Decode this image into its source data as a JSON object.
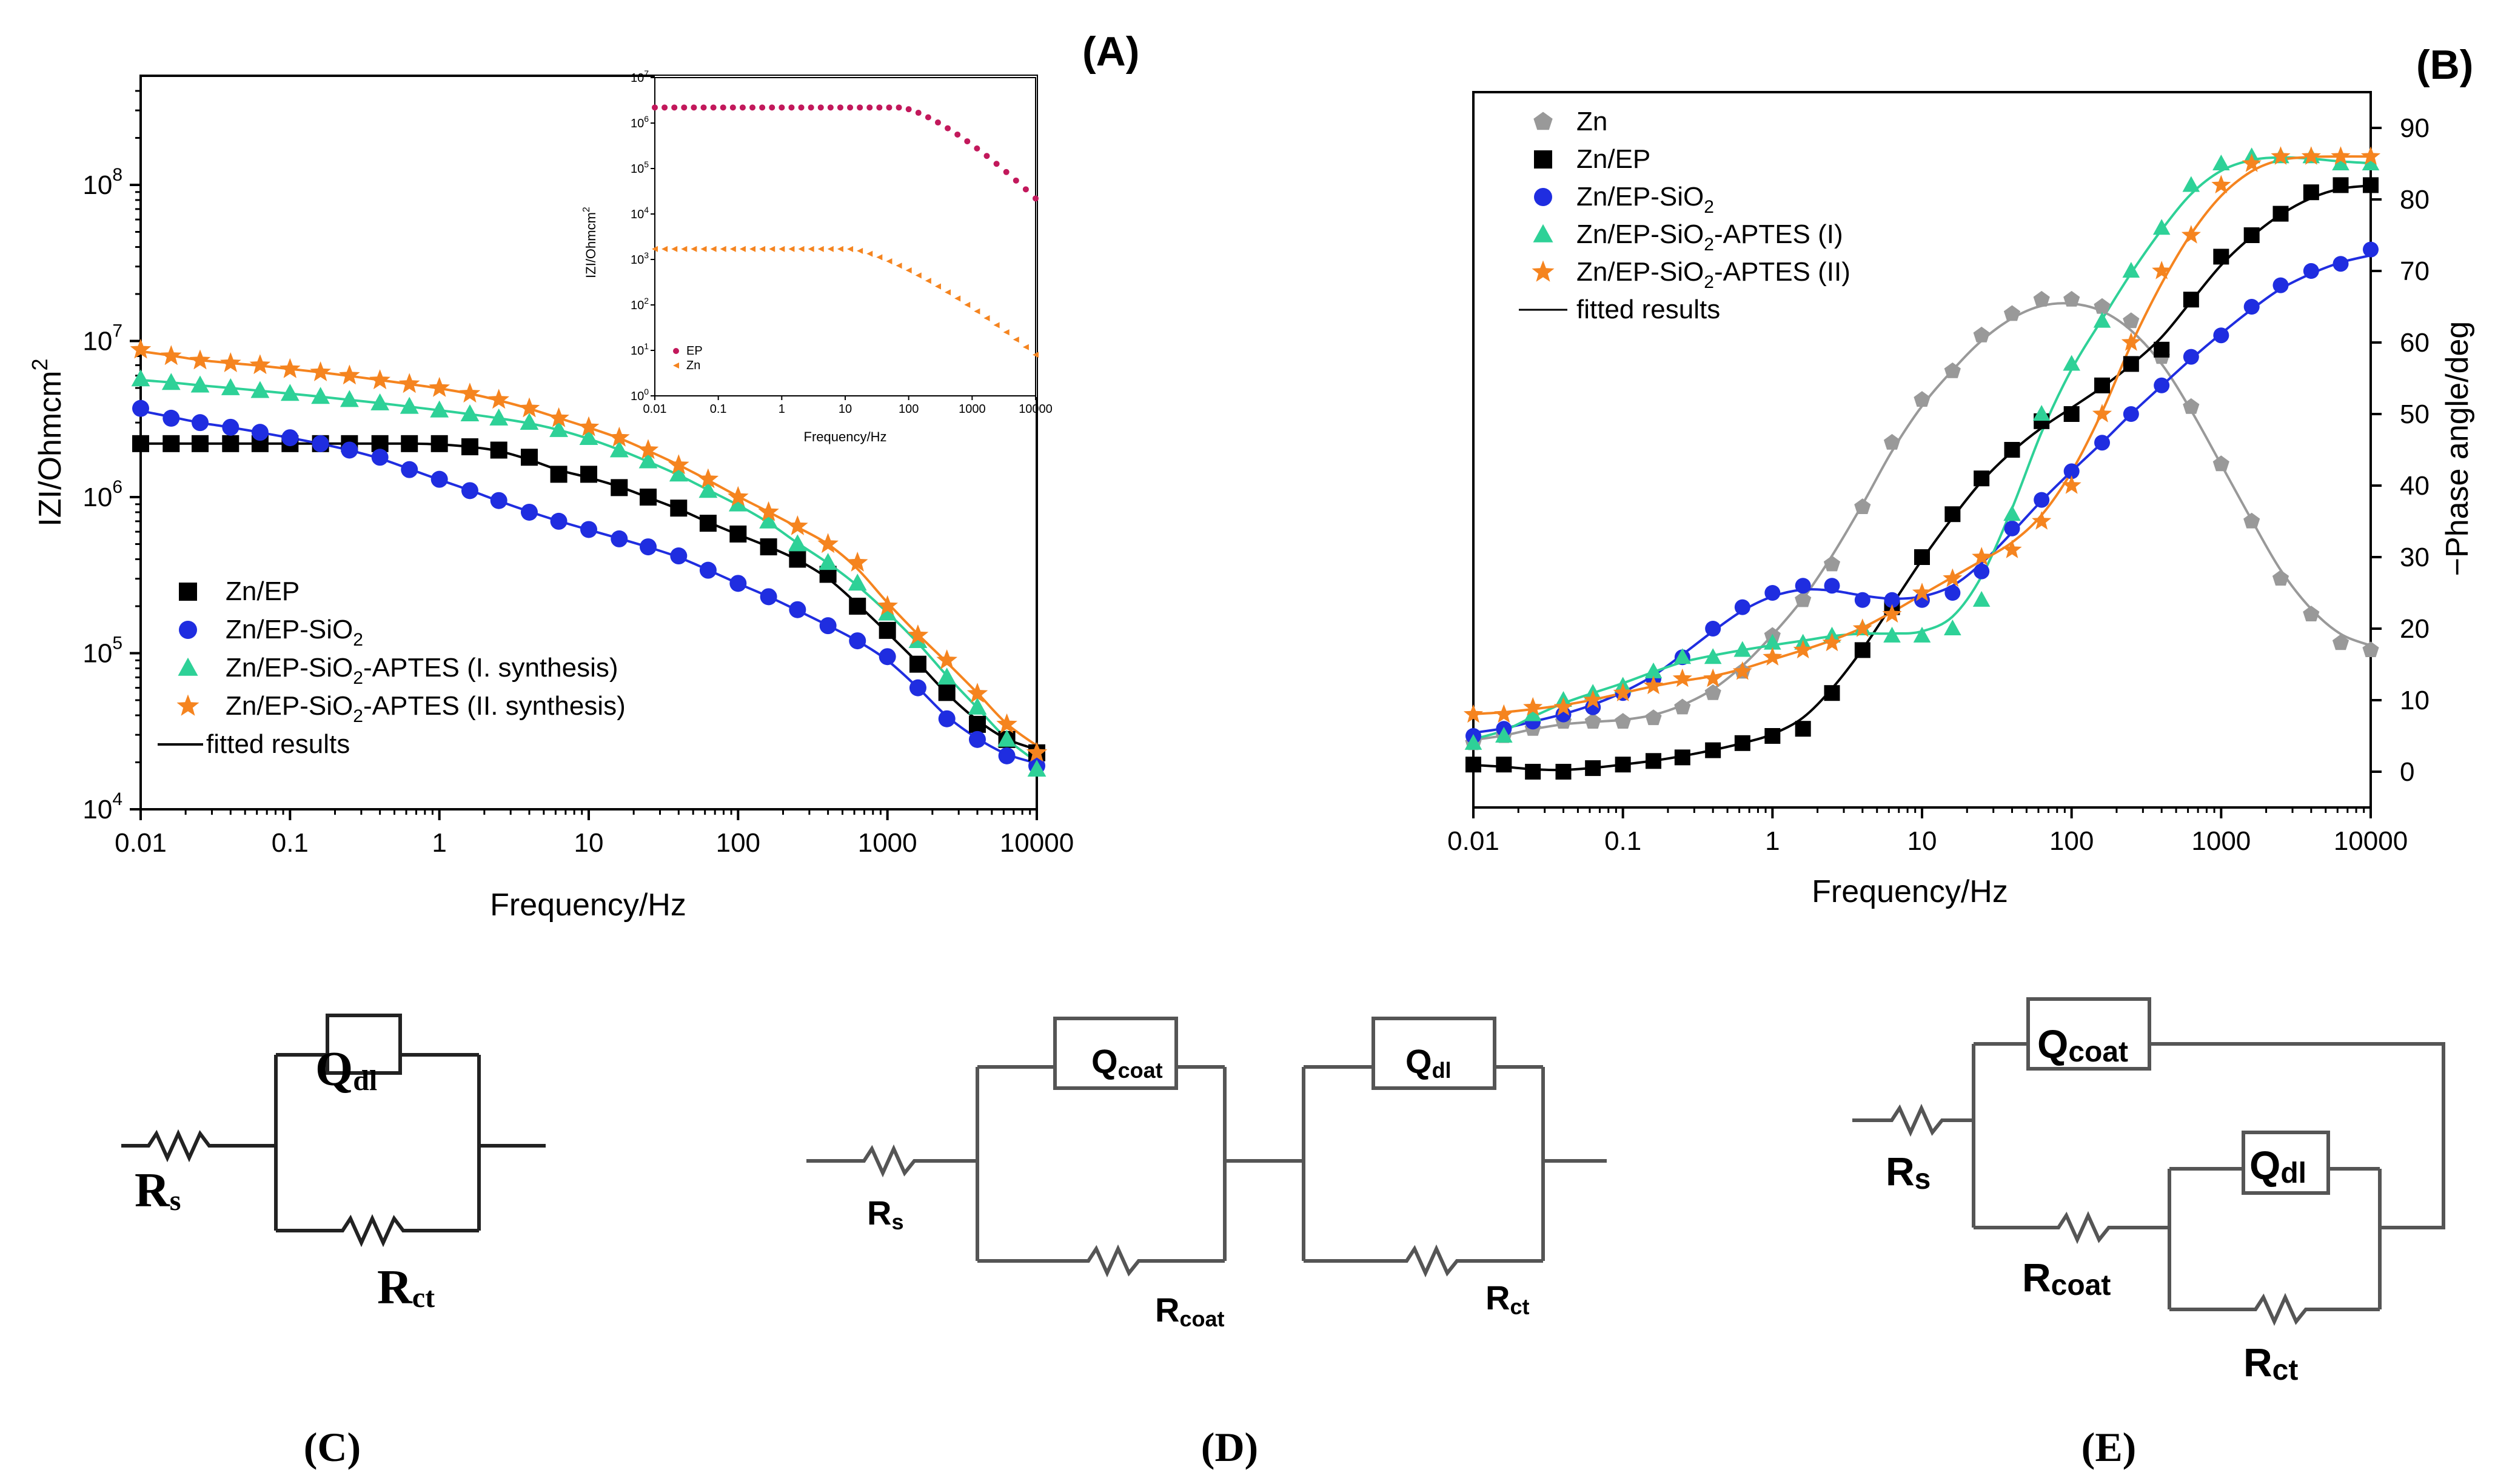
{
  "panels": {
    "A": "(A)",
    "B": "(B)",
    "C": "(C)",
    "D": "(D)",
    "E": "(E)"
  },
  "colors": {
    "black": "#000000",
    "blue": "#1f2de0",
    "green": "#2ed197",
    "orange": "#f5841f",
    "gray": "#999999",
    "crimson": "#c2185b"
  },
  "chart_data": [
    {
      "type": "scatter",
      "panel": "A",
      "xlabel": "Frequency/Hz",
      "ylabel": "IZI/Ohmcm",
      "ylabel_sup": "2",
      "x_scale": "log",
      "y_scale": "log",
      "xlim": [
        0.01,
        10000
      ],
      "ylim": [
        10000,
        500000000
      ],
      "x_ticks": [
        "0.01",
        "0.1",
        "1",
        "10",
        "100",
        "1000",
        "10000"
      ],
      "y_ticks": [
        "10",
        "10",
        "10",
        "10",
        "10"
      ],
      "y_tick_exps": [
        "4",
        "5",
        "6",
        "7",
        "8"
      ],
      "x": [
        0.01,
        0.016,
        0.025,
        0.04,
        0.063,
        0.1,
        0.16,
        0.25,
        0.4,
        0.63,
        1,
        1.6,
        2.5,
        4,
        6.3,
        10,
        16,
        25,
        40,
        63,
        100,
        160,
        250,
        400,
        630,
        1000,
        1600,
        2500,
        4000,
        6300,
        10000
      ],
      "legend": {
        "items": [
          "Zn/EP",
          "Zn/EP-SiO",
          "Zn/EP-SiO",
          "Zn/EP-SiO",
          "fitted results"
        ],
        "subs": [
          "",
          "2",
          "2",
          "2",
          ""
        ],
        "tails": [
          "",
          "",
          "-APTES (I. synthesis)",
          "-APTES (II. synthesis)",
          ""
        ]
      },
      "series": [
        {
          "marker": "square",
          "color": "#000000",
          "values": [
            2200000,
            2200000,
            2200000,
            2200000,
            2200000,
            2200000,
            2200000,
            2200000,
            2200000,
            2200000,
            2200000,
            2100000,
            2000000,
            1800000,
            1400000,
            1400000,
            1150000,
            1000000,
            850000,
            680000,
            580000,
            480000,
            400000,
            320000,
            200000,
            140000,
            85000,
            56000,
            35000,
            28000,
            23000
          ]
        },
        {
          "marker": "circle",
          "color": "#1f2de0",
          "values": [
            3700000,
            3200000,
            3000000,
            2800000,
            2600000,
            2400000,
            2200000,
            2000000,
            1800000,
            1500000,
            1300000,
            1100000,
            950000,
            800000,
            700000,
            620000,
            540000,
            480000,
            420000,
            340000,
            280000,
            230000,
            190000,
            150000,
            120000,
            95000,
            60000,
            38000,
            28000,
            22000,
            19000
          ]
        },
        {
          "marker": "triangle",
          "color": "#2ed197",
          "values": [
            5700000,
            5400000,
            5200000,
            5000000,
            4800000,
            4600000,
            4400000,
            4200000,
            4000000,
            3800000,
            3600000,
            3400000,
            3200000,
            3000000,
            2700000,
            2400000,
            2000000,
            1700000,
            1400000,
            1100000,
            900000,
            700000,
            500000,
            380000,
            280000,
            180000,
            120000,
            70000,
            45000,
            28000,
            18000
          ]
        },
        {
          "marker": "star",
          "color": "#f5841f",
          "values": [
            8800000,
            8000000,
            7500000,
            7200000,
            7000000,
            6600000,
            6300000,
            6000000,
            5600000,
            5300000,
            5000000,
            4600000,
            4200000,
            3700000,
            3200000,
            2800000,
            2400000,
            2000000,
            1600000,
            1300000,
            1000000,
            800000,
            650000,
            500000,
            380000,
            200000,
            130000,
            90000,
            55000,
            35000,
            23000
          ]
        }
      ]
    },
    {
      "type": "scatter",
      "panel": "A-inset",
      "xlabel": "Frequency/Hz",
      "ylabel": "IZI/Ohmcm",
      "ylabel_sup": "2",
      "x_scale": "log",
      "y_scale": "log",
      "xlim": [
        0.01,
        10000
      ],
      "ylim": [
        1,
        10000000
      ],
      "x_ticks": [
        "0.01",
        "0.1",
        "1",
        "10",
        "100",
        "1000",
        "10000"
      ],
      "y_ticks": [
        "10",
        "10",
        "10",
        "10",
        "10",
        "10",
        "10",
        "10"
      ],
      "y_tick_exps": [
        "0",
        "1",
        "2",
        "3",
        "4",
        "5",
        "6",
        "7"
      ],
      "legend": {
        "items": [
          "EP",
          "Zn"
        ]
      },
      "series": [
        {
          "marker": "circle",
          "color": "#c2185b",
          "x_count": 40,
          "level": 2200000,
          "corner_f": 1000,
          "end_value": 22000
        },
        {
          "marker": "triangle-left",
          "color": "#f5841f",
          "x_count": 40,
          "level": 1700,
          "corner_f": 50,
          "end_value": 8
        }
      ]
    },
    {
      "type": "scatter",
      "panel": "B",
      "xlabel": "Frequency/Hz",
      "ylabel": "−Phase angle/deg",
      "x_scale": "log",
      "xlim": [
        0.01,
        10000
      ],
      "ylim": [
        -5,
        95
      ],
      "x_ticks": [
        "0.01",
        "0.1",
        "1",
        "10",
        "100",
        "1000",
        "10000"
      ],
      "y_ticks": [
        "0",
        "10",
        "20",
        "30",
        "40",
        "50",
        "60",
        "70",
        "80",
        "90"
      ],
      "x": [
        0.01,
        0.016,
        0.025,
        0.04,
        0.063,
        0.1,
        0.16,
        0.25,
        0.4,
        0.63,
        1,
        1.6,
        2.5,
        4,
        6.3,
        10,
        16,
        25,
        40,
        63,
        100,
        160,
        250,
        400,
        630,
        1000,
        1600,
        2500,
        4000,
        6300,
        10000
      ],
      "legend": {
        "items": [
          "Zn",
          "Zn/EP",
          "Zn/EP-SiO",
          "Zn/EP-SiO",
          "Zn/EP-SiO",
          "fitted results"
        ],
        "subs": [
          "",
          "",
          "2",
          "2",
          "2",
          ""
        ],
        "tails": [
          "",
          "",
          "",
          "-APTES (I)",
          "-APTES (II)",
          ""
        ]
      },
      "series": [
        {
          "marker": "pentagon",
          "color": "#999999",
          "values": [
            4,
            5,
            6,
            7,
            7,
            7,
            7.5,
            9,
            11,
            14,
            19,
            24,
            29,
            37,
            46,
            52,
            56,
            61,
            64,
            66,
            66,
            65,
            63,
            58,
            51,
            43,
            35,
            27,
            22,
            18,
            17
          ]
        },
        {
          "marker": "square",
          "color": "#000000",
          "values": [
            1,
            1,
            0,
            0,
            0.5,
            1,
            1.5,
            2,
            3,
            4,
            5,
            6,
            11,
            17,
            23,
            30,
            36,
            41,
            45,
            49,
            50,
            54,
            57,
            59,
            66,
            72,
            75,
            78,
            81,
            82,
            82
          ]
        },
        {
          "marker": "circle",
          "color": "#1f2de0",
          "values": [
            5,
            6,
            7,
            8,
            9,
            11,
            13,
            16,
            20,
            23,
            25,
            26,
            26,
            24,
            24,
            24,
            25,
            28,
            34,
            38,
            42,
            46,
            50,
            54,
            58,
            61,
            65,
            68,
            70,
            71,
            73
          ]
        },
        {
          "marker": "triangle",
          "color": "#2ed197",
          "values": [
            4,
            5,
            8,
            10,
            11,
            12,
            14,
            16,
            16,
            17,
            18,
            18,
            19,
            20,
            19,
            19,
            20,
            24,
            36,
            50,
            57,
            63,
            70,
            76,
            82,
            85,
            86,
            86,
            86,
            85,
            85
          ]
        },
        {
          "marker": "star",
          "color": "#f5841f",
          "values": [
            8,
            8,
            9,
            9,
            10,
            11,
            12,
            13,
            13,
            14,
            16,
            17,
            18,
            20,
            22,
            25,
            27,
            30,
            31,
            35,
            40,
            50,
            60,
            70,
            75,
            82,
            85,
            86,
            86,
            86,
            86
          ]
        }
      ]
    }
  ],
  "circuits": {
    "C": {
      "rs": "R",
      "rs_sub": "s",
      "q": "Q",
      "q_sub": "dl",
      "r": "R",
      "r_sub": "ct"
    },
    "D": {
      "rs": "R",
      "rs_sub": "s",
      "q1": "Q",
      "q1_sub": "coat",
      "r1": "R",
      "r1_sub": "coat",
      "q2": "Q",
      "q2_sub": "dl",
      "r2": "R",
      "r2_sub": "ct"
    },
    "E": {
      "rs": "R",
      "rs_sub": "s",
      "q1": "Q",
      "q1_sub": "coat",
      "r1": "R",
      "r1_sub": "coat",
      "q2": "Q",
      "q2_sub": "dl",
      "r2": "R",
      "r2_sub": "ct"
    }
  }
}
